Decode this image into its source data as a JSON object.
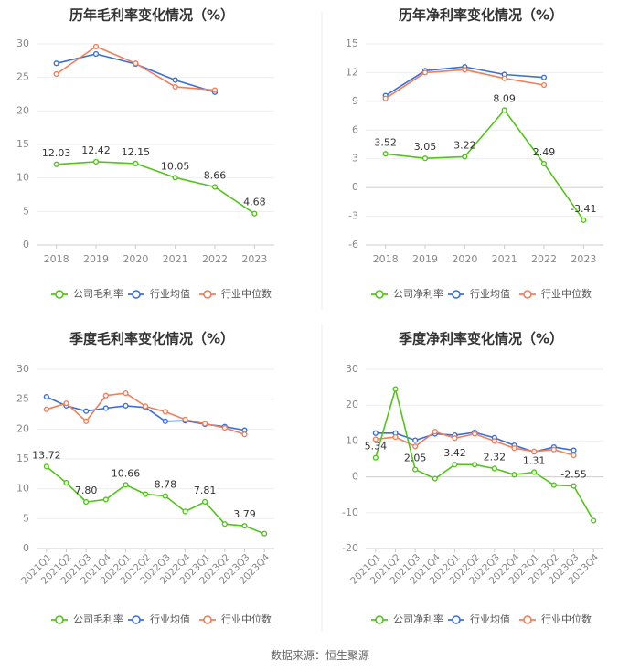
{
  "source": "数据来源：恒生聚源",
  "legend": {
    "company_gross": "公司毛利率",
    "company_net": "公司净利率",
    "industry_avg": "行业均值",
    "industry_median": "行业中位数"
  },
  "colors": {
    "company": "#52c41a",
    "industry_avg": "#3b6fd8",
    "industry_median": "#f07f5a"
  },
  "chart_data": [
    {
      "type": "line",
      "title": "历年毛利率变化情况（%）",
      "categories": [
        "2018",
        "2019",
        "2020",
        "2021",
        "2022",
        "2023"
      ],
      "yticks": [
        0,
        5,
        10,
        15,
        20,
        25,
        30
      ],
      "ylim": [
        0,
        30
      ],
      "legend_keys": [
        "company_gross",
        "industry_avg",
        "industry_median"
      ],
      "series": [
        {
          "name": "公司毛利率",
          "color": "#52c41a",
          "values": [
            12.03,
            12.42,
            12.15,
            10.05,
            8.66,
            4.68
          ],
          "labels": [
            "12.03",
            "12.42",
            "12.15",
            "10.05",
            "8.66",
            "4.68"
          ]
        },
        {
          "name": "行业均值",
          "color": "#3b6fd8",
          "values": [
            27.1,
            28.5,
            27.0,
            24.6,
            22.8,
            null
          ]
        },
        {
          "name": "行业中位数",
          "color": "#f07f5a",
          "values": [
            25.5,
            29.6,
            27.1,
            23.6,
            23.1,
            null
          ]
        }
      ]
    },
    {
      "type": "line",
      "title": "历年净利率变化情况（%）",
      "categories": [
        "2018",
        "2019",
        "2020",
        "2021",
        "2022",
        "2023"
      ],
      "yticks": [
        -6,
        -3,
        0,
        3,
        6,
        9,
        12,
        15
      ],
      "ylim": [
        -6,
        15
      ],
      "legend_keys": [
        "company_net",
        "industry_avg",
        "industry_median"
      ],
      "series": [
        {
          "name": "公司净利率",
          "color": "#52c41a",
          "values": [
            3.52,
            3.05,
            3.22,
            8.09,
            2.49,
            -3.41
          ],
          "labels": [
            "3.52",
            "3.05",
            "3.22",
            "8.09",
            "2.49",
            "-3.41"
          ]
        },
        {
          "name": "行业均值",
          "color": "#3b6fd8",
          "values": [
            9.6,
            12.2,
            12.6,
            11.8,
            11.5,
            null
          ]
        },
        {
          "name": "行业中位数",
          "color": "#f07f5a",
          "values": [
            9.3,
            12.0,
            12.3,
            11.4,
            10.7,
            null
          ]
        }
      ]
    },
    {
      "type": "line",
      "title": "季度毛利率变化情况（%）",
      "categories": [
        "2021Q1",
        "2021Q2",
        "2021Q3",
        "2021Q4",
        "2022Q1",
        "2022Q2",
        "2022Q3",
        "2022Q4",
        "2023Q1",
        "2023Q2",
        "2023Q3",
        "2023Q4"
      ],
      "yticks": [
        0,
        5,
        10,
        15,
        20,
        25,
        30
      ],
      "ylim": [
        0,
        30
      ],
      "legend_keys": [
        "company_gross",
        "industry_avg",
        "industry_median"
      ],
      "series": [
        {
          "name": "公司毛利率",
          "color": "#52c41a",
          "values": [
            13.72,
            11.0,
            7.8,
            8.2,
            10.66,
            9.1,
            8.78,
            6.2,
            7.81,
            4.1,
            3.79,
            2.5
          ],
          "labels": [
            "13.72",
            null,
            "7.80",
            null,
            "10.66",
            null,
            "8.78",
            null,
            "7.81",
            null,
            "3.79",
            null
          ]
        },
        {
          "name": "行业均值",
          "color": "#3b6fd8",
          "values": [
            25.4,
            23.9,
            23.0,
            23.5,
            23.9,
            23.6,
            21.3,
            21.4,
            20.8,
            20.4,
            19.8,
            null
          ]
        },
        {
          "name": "行业中位数",
          "color": "#f07f5a",
          "values": [
            23.3,
            24.3,
            21.3,
            25.6,
            26.0,
            23.8,
            22.9,
            21.6,
            20.9,
            20.2,
            19.1,
            null
          ]
        }
      ]
    },
    {
      "type": "line",
      "title": "季度净利率变化情况（%）",
      "categories": [
        "2021Q1",
        "2021Q2",
        "2021Q3",
        "2021Q4",
        "2022Q1",
        "2022Q2",
        "2022Q3",
        "2022Q4",
        "2023Q1",
        "2023Q2",
        "2023Q3",
        "2023Q4"
      ],
      "yticks": [
        -20,
        -10,
        0,
        10,
        20,
        30
      ],
      "ylim": [
        -20,
        30
      ],
      "legend_keys": [
        "company_net",
        "industry_avg",
        "industry_median"
      ],
      "series": [
        {
          "name": "公司净利率",
          "color": "#52c41a",
          "values": [
            5.34,
            24.5,
            2.05,
            -0.5,
            3.42,
            3.4,
            2.32,
            0.6,
            1.31,
            -2.3,
            -2.55,
            -12.2
          ],
          "labels": [
            "5.34",
            null,
            "2.05",
            null,
            "3.42",
            null,
            "2.32",
            null,
            "1.31",
            null,
            "-2.55",
            null
          ]
        },
        {
          "name": "行业均值",
          "color": "#3b6fd8",
          "values": [
            12.2,
            12.2,
            10.2,
            12.0,
            11.6,
            12.4,
            10.9,
            8.8,
            7.0,
            8.3,
            7.4,
            null
          ]
        },
        {
          "name": "行业中位数",
          "color": "#f07f5a",
          "values": [
            10.5,
            11.1,
            8.5,
            12.6,
            10.8,
            12.0,
            10.0,
            8.0,
            7.1,
            7.6,
            6.0,
            null
          ]
        }
      ]
    }
  ]
}
